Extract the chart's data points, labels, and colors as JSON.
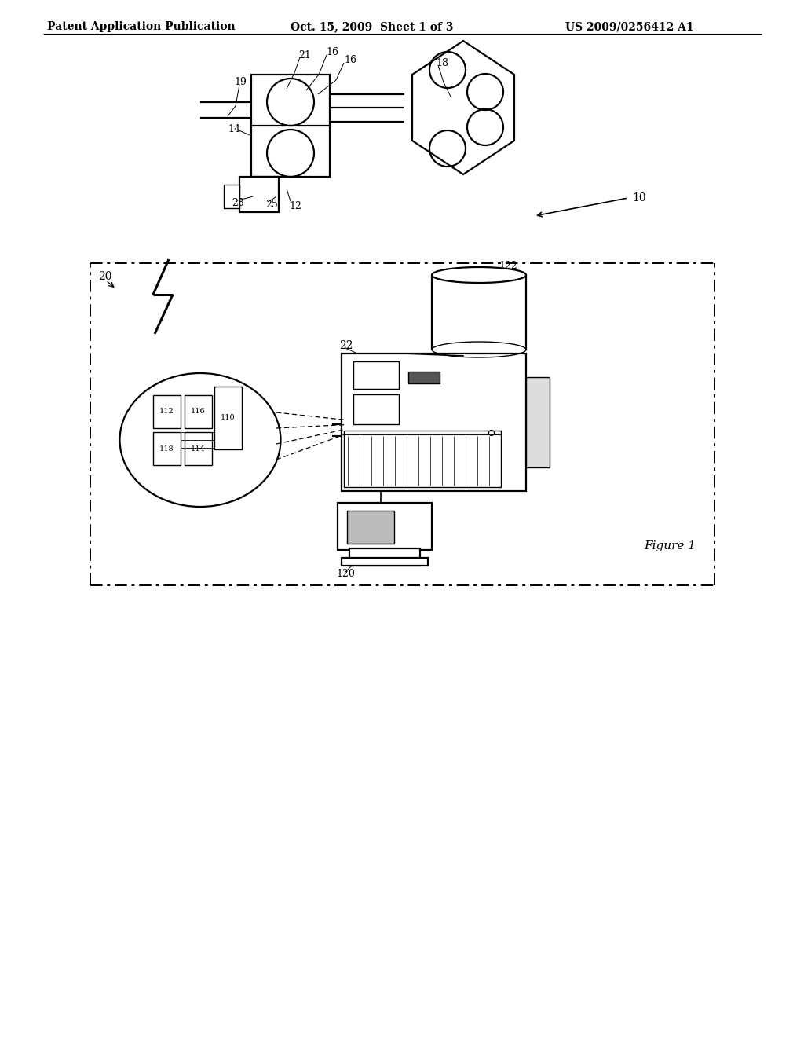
{
  "title_left": "Patent Application Publication",
  "title_mid": "Oct. 15, 2009  Sheet 1 of 3",
  "title_right": "US 2009/0256412 A1",
  "figure_label": "Figure 1",
  "bg_color": "#ffffff",
  "line_color": "#000000"
}
